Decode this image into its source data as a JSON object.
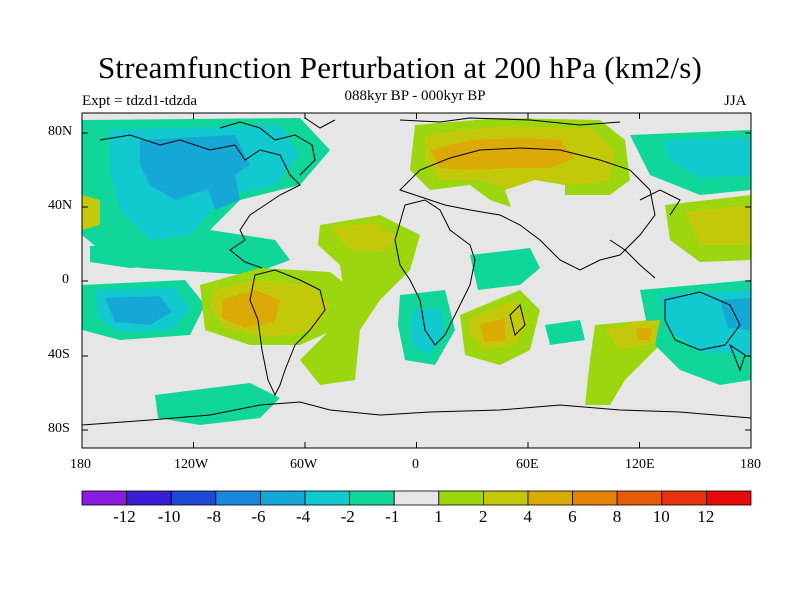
{
  "title": "Streamfunction Perturbation at 200 hPa (km2/s)",
  "subtitle": "088kyr BP - 000kyr BP",
  "left_label": "Expt = tdzd1-tdzda",
  "right_label": "JJA",
  "lat_ticks": [
    "80N",
    "40N",
    "0",
    "40S",
    "80S"
  ],
  "lon_ticks": [
    "180",
    "120W",
    "60W",
    "0",
    "60E",
    "120E",
    "180"
  ],
  "colorbar": {
    "labels": [
      "-12",
      "-10",
      "-8",
      "-6",
      "-4",
      "-2",
      "-1",
      "1",
      "2",
      "4",
      "6",
      "8",
      "10",
      "12"
    ],
    "colors": [
      "#8a1be0",
      "#3a1ed6",
      "#1f48d4",
      "#1a87dc",
      "#15a8d6",
      "#12c9d0",
      "#10d69a",
      "#e6e6e6",
      "#9cd60e",
      "#c4c80a",
      "#dcaa06",
      "#e48206",
      "#e45c08",
      "#e63210",
      "#e60a0a"
    ]
  },
  "map_palette": {
    "neutral": "#e6e6e6",
    "green_neg": "#10d69a",
    "cyan_neg": "#12c9d0",
    "blue_neg": "#15a8d6",
    "lime_pos": "#9cd60e",
    "yellow_pos": "#c4c80a",
    "orange_pos": "#dcaa06"
  }
}
